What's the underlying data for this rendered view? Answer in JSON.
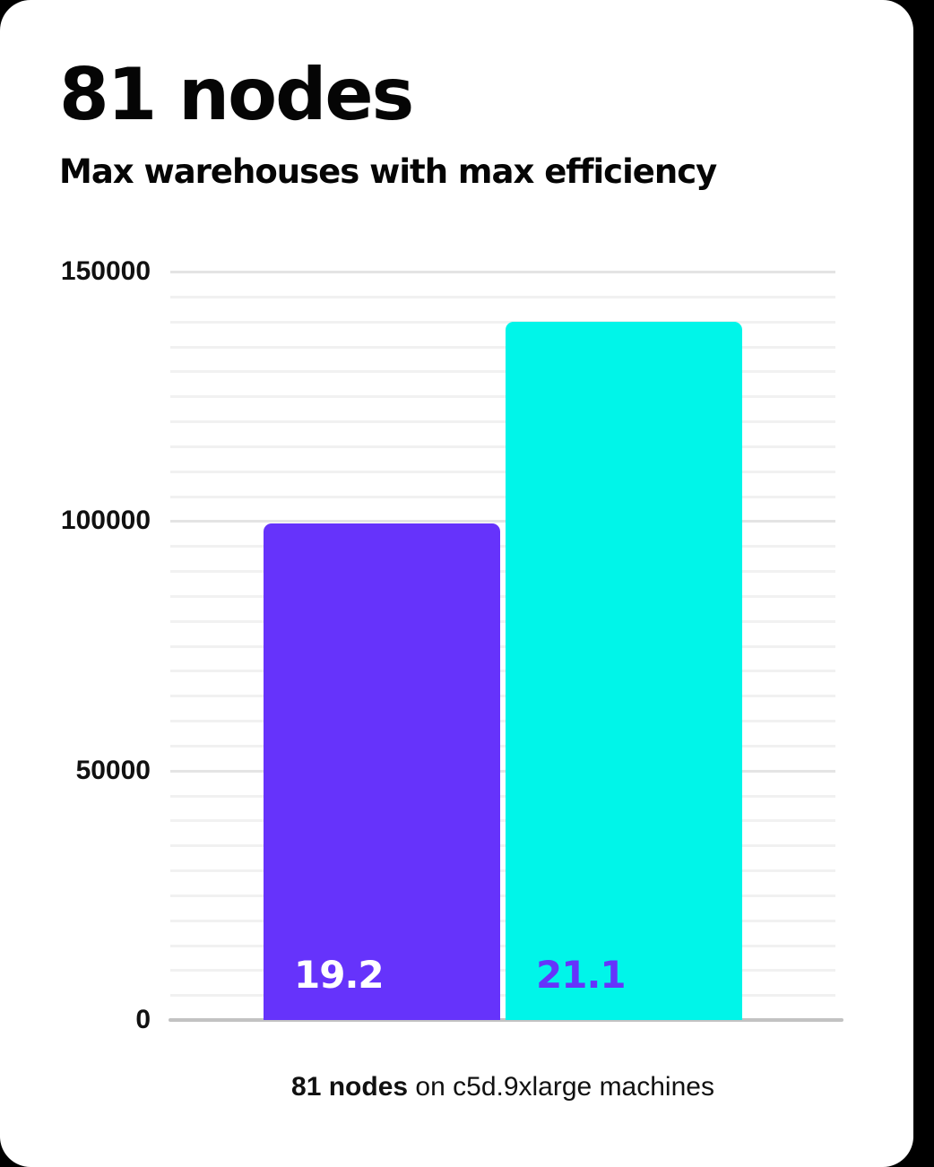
{
  "page": {
    "background_color": "#000000",
    "card_color": "#ffffff"
  },
  "header": {
    "title": "81 nodes",
    "subtitle": "Max warehouses with max efficiency"
  },
  "chart_data": {
    "type": "bar",
    "title": "81 nodes",
    "subtitle": "Max warehouses with max efficiency",
    "ylabel": "",
    "xlabel": "",
    "ylim": [
      0,
      150000
    ],
    "yticks": [
      0,
      50000,
      100000,
      150000
    ],
    "ytick_labels": [
      "0",
      "50000",
      "100000",
      "150000"
    ],
    "minor_gridline_step": 5000,
    "grid": true,
    "legend_position": "none",
    "bars": [
      {
        "label": "19.2",
        "value": 99500,
        "color": "#6633fb",
        "label_color": "#ffffff"
      },
      {
        "label": "21.1",
        "value": 140000,
        "color": "#00f5e9",
        "label_color": "#6633fb"
      }
    ],
    "caption": {
      "bold": "81 nodes",
      "rest": " on c5d.9xlarge machines"
    },
    "axis_line_color": "#c2c2c2"
  }
}
